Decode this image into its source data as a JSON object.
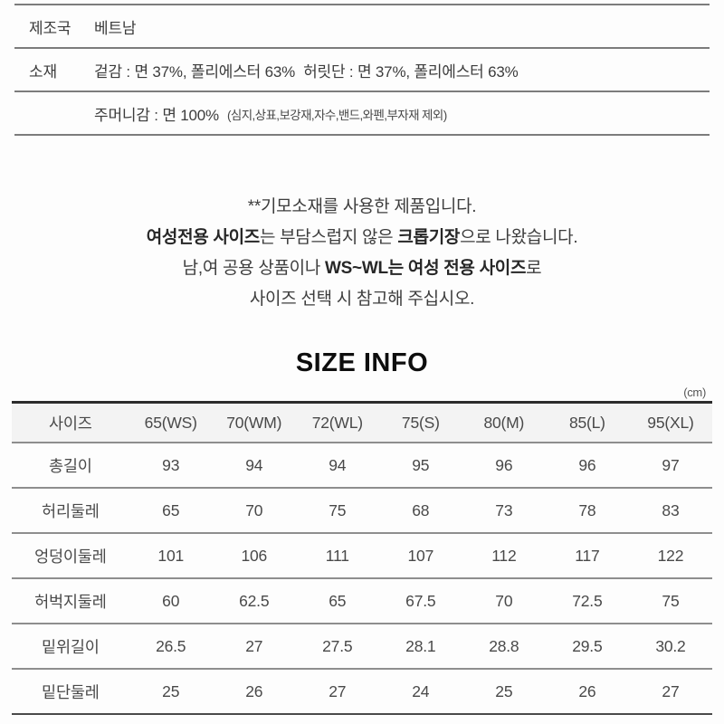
{
  "info_table": {
    "rows": [
      {
        "label": "제조국",
        "value": "베트남",
        "note": ""
      },
      {
        "label": "소재",
        "value": "겉감 : 면 37%, 폴리에스터 63%  허릿단 : 면 37%, 폴리에스터 63%",
        "note": ""
      },
      {
        "label": "",
        "value": "주머니감 : 면 100%",
        "note": "(심지,상표,보강재,자수,밴드,와펜,부자재 제외)"
      }
    ]
  },
  "notice": {
    "lines": [
      {
        "parts": [
          {
            "text": "**기모소재를 사용한 제품입니다.",
            "bold": false
          }
        ]
      },
      {
        "parts": [
          {
            "text": "여성전용 사이즈",
            "bold": true
          },
          {
            "text": "는 부담스럽지 않은 ",
            "bold": false
          },
          {
            "text": "크롭기장",
            "bold": true
          },
          {
            "text": "으로 나왔습니다.",
            "bold": false
          }
        ]
      },
      {
        "parts": [
          {
            "text": "남,여 공용 상품이나 ",
            "bold": false
          },
          {
            "text": "WS~WL는 여성 전용 사이즈",
            "bold": true
          },
          {
            "text": "로",
            "bold": false
          }
        ]
      },
      {
        "parts": [
          {
            "text": "사이즈 선택 시 참고해 주십시오.",
            "bold": false
          }
        ]
      }
    ]
  },
  "size_info": {
    "title": "SIZE INFO",
    "unit": "(cm)",
    "header": [
      "사이즈",
      "65(WS)",
      "70(WM)",
      "72(WL)",
      "75(S)",
      "80(M)",
      "85(L)",
      "95(XL)"
    ],
    "rows": [
      {
        "label": "총길이",
        "values": [
          "93",
          "94",
          "94",
          "95",
          "96",
          "96",
          "97"
        ]
      },
      {
        "label": "허리둘레",
        "values": [
          "65",
          "70",
          "75",
          "68",
          "73",
          "78",
          "83"
        ]
      },
      {
        "label": "엉덩이둘레",
        "values": [
          "101",
          "106",
          "111",
          "107",
          "112",
          "117",
          "122"
        ]
      },
      {
        "label": "허벅지둘레",
        "values": [
          "60",
          "62.5",
          "65",
          "67.5",
          "70",
          "72.5",
          "75"
        ]
      },
      {
        "label": "밑위길이",
        "values": [
          "26.5",
          "27",
          "27.5",
          "28.1",
          "28.8",
          "29.5",
          "30.2"
        ]
      },
      {
        "label": "밑단둘레",
        "values": [
          "25",
          "26",
          "27",
          "24",
          "25",
          "26",
          "27"
        ]
      }
    ],
    "colors": {
      "table_top_border": "#2c2c2c",
      "row_divider": "#8e8e8e",
      "header_background": "#f3f3f3",
      "text": "#3e3e3e"
    }
  }
}
